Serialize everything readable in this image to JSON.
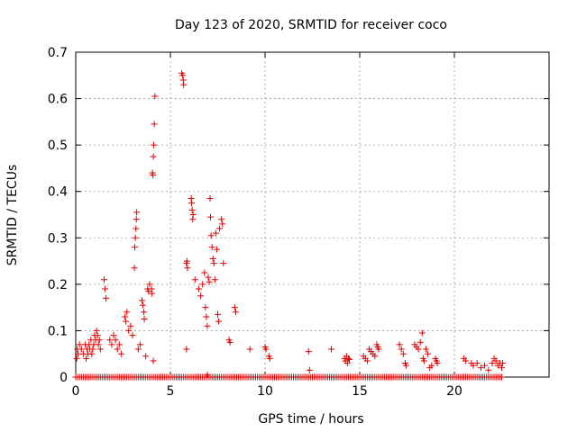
{
  "chart_data": {
    "type": "scatter",
    "title": "Day 123 of 2020, SRMTID for receiver coco",
    "xlabel": "GPS time / hours",
    "ylabel": "SRMTID / TECUs",
    "xlim": [
      0,
      25
    ],
    "ylim": [
      0,
      0.7
    ],
    "xticks": [
      0,
      5,
      10,
      15,
      20
    ],
    "yticks": [
      0,
      0.1,
      0.2,
      0.3,
      0.4,
      0.5,
      0.6,
      0.7
    ],
    "grid": true,
    "marker": "+",
    "color": "#dd0000",
    "zero_band": [
      0,
      22.6
    ],
    "series": [
      {
        "name": "SRMTID",
        "points": [
          [
            0.05,
            0.04
          ],
          [
            0.08,
            0.06
          ],
          [
            0.12,
            0.05
          ],
          [
            0.2,
            0.07
          ],
          [
            0.3,
            0.06
          ],
          [
            0.4,
            0.05
          ],
          [
            0.5,
            0.07
          ],
          [
            0.55,
            0.04
          ],
          [
            0.6,
            0.06
          ],
          [
            0.65,
            0.05
          ],
          [
            0.7,
            0.07
          ],
          [
            0.75,
            0.06
          ],
          [
            0.8,
            0.08
          ],
          [
            0.85,
            0.05
          ],
          [
            0.9,
            0.06
          ],
          [
            0.95,
            0.07
          ],
          [
            1.0,
            0.09
          ],
          [
            1.05,
            0.08
          ],
          [
            1.1,
            0.1
          ],
          [
            1.15,
            0.09
          ],
          [
            1.2,
            0.07
          ],
          [
            1.25,
            0.08
          ],
          [
            1.3,
            0.06
          ],
          [
            1.5,
            0.21
          ],
          [
            1.55,
            0.19
          ],
          [
            1.6,
            0.17
          ],
          [
            1.8,
            0.08
          ],
          [
            1.9,
            0.07
          ],
          [
            2.0,
            0.09
          ],
          [
            2.1,
            0.08
          ],
          [
            2.2,
            0.06
          ],
          [
            2.3,
            0.07
          ],
          [
            2.4,
            0.05
          ],
          [
            2.6,
            0.13
          ],
          [
            2.65,
            0.12
          ],
          [
            2.7,
            0.14
          ],
          [
            2.8,
            0.1
          ],
          [
            2.9,
            0.11
          ],
          [
            3.0,
            0.09
          ],
          [
            3.1,
            0.235
          ],
          [
            3.12,
            0.28
          ],
          [
            3.15,
            0.3
          ],
          [
            3.18,
            0.32
          ],
          [
            3.2,
            0.34
          ],
          [
            3.22,
            0.355
          ],
          [
            3.3,
            0.06
          ],
          [
            3.4,
            0.07
          ],
          [
            3.5,
            0.165
          ],
          [
            3.55,
            0.155
          ],
          [
            3.6,
            0.14
          ],
          [
            3.62,
            0.125
          ],
          [
            3.7,
            0.045
          ],
          [
            3.8,
            0.19
          ],
          [
            3.85,
            0.185
          ],
          [
            3.9,
            0.2
          ],
          [
            4.05,
            0.44
          ],
          [
            4.08,
            0.435
          ],
          [
            4.1,
            0.475
          ],
          [
            4.12,
            0.5
          ],
          [
            4.15,
            0.545
          ],
          [
            4.18,
            0.605
          ],
          [
            4.1,
            0.035
          ],
          [
            5.6,
            0.655
          ],
          [
            5.65,
            0.65
          ],
          [
            5.68,
            0.64
          ],
          [
            5.7,
            0.63
          ],
          [
            5.85,
            0.245
          ],
          [
            5.88,
            0.25
          ],
          [
            5.9,
            0.235
          ],
          [
            5.85,
            0.06
          ],
          [
            6.1,
            0.385
          ],
          [
            6.12,
            0.375
          ],
          [
            6.15,
            0.36
          ],
          [
            6.18,
            0.34
          ],
          [
            6.2,
            0.35
          ],
          [
            6.3,
            0.21
          ],
          [
            6.5,
            0.19
          ],
          [
            6.6,
            0.175
          ],
          [
            6.7,
            0.2
          ],
          [
            6.8,
            0.225
          ],
          [
            6.85,
            0.15
          ],
          [
            6.9,
            0.13
          ],
          [
            6.95,
            0.11
          ],
          [
            7.0,
            0.215
          ],
          [
            7.05,
            0.205
          ],
          [
            7.1,
            0.385
          ],
          [
            7.12,
            0.345
          ],
          [
            7.15,
            0.305
          ],
          [
            7.2,
            0.28
          ],
          [
            7.25,
            0.255
          ],
          [
            7.3,
            0.245
          ],
          [
            7.35,
            0.21
          ],
          [
            7.4,
            0.31
          ],
          [
            7.45,
            0.275
          ],
          [
            7.5,
            0.135
          ],
          [
            7.55,
            0.12
          ],
          [
            7.6,
            0.32
          ],
          [
            7.7,
            0.34
          ],
          [
            7.75,
            0.33
          ],
          [
            7.8,
            0.245
          ],
          [
            8.1,
            0.08
          ],
          [
            8.15,
            0.075
          ],
          [
            8.4,
            0.15
          ],
          [
            8.45,
            0.14
          ],
          [
            9.2,
            0.06
          ],
          [
            10.0,
            0.065
          ],
          [
            10.05,
            0.06
          ],
          [
            10.2,
            0.045
          ],
          [
            10.25,
            0.04
          ],
          [
            12.3,
            0.055
          ],
          [
            12.35,
            0.015
          ],
          [
            13.5,
            0.06
          ],
          [
            14.2,
            0.04
          ],
          [
            14.25,
            0.035
          ],
          [
            14.3,
            0.045
          ],
          [
            14.35,
            0.03
          ],
          [
            14.4,
            0.04
          ],
          [
            14.45,
            0.038
          ],
          [
            15.2,
            0.045
          ],
          [
            15.3,
            0.04
          ],
          [
            15.4,
            0.035
          ],
          [
            15.5,
            0.06
          ],
          [
            15.6,
            0.055
          ],
          [
            15.7,
            0.05
          ],
          [
            15.8,
            0.045
          ],
          [
            15.9,
            0.07
          ],
          [
            15.95,
            0.065
          ],
          [
            16.0,
            0.06
          ],
          [
            17.1,
            0.07
          ],
          [
            17.2,
            0.06
          ],
          [
            17.3,
            0.05
          ],
          [
            17.4,
            0.03
          ],
          [
            17.45,
            0.025
          ],
          [
            17.9,
            0.07
          ],
          [
            18.0,
            0.065
          ],
          [
            18.1,
            0.06
          ],
          [
            18.2,
            0.075
          ],
          [
            18.3,
            0.095
          ],
          [
            18.35,
            0.04
          ],
          [
            18.4,
            0.035
          ],
          [
            18.5,
            0.06
          ],
          [
            18.6,
            0.05
          ],
          [
            18.7,
            0.02
          ],
          [
            18.8,
            0.025
          ],
          [
            19.0,
            0.04
          ],
          [
            19.05,
            0.035
          ],
          [
            19.1,
            0.03
          ],
          [
            20.5,
            0.04
          ],
          [
            20.6,
            0.035
          ],
          [
            20.9,
            0.03
          ],
          [
            21.0,
            0.025
          ],
          [
            21.2,
            0.03
          ],
          [
            21.4,
            0.02
          ],
          [
            21.6,
            0.025
          ],
          [
            21.8,
            0.015
          ],
          [
            22.0,
            0.03
          ],
          [
            22.1,
            0.04
          ],
          [
            22.2,
            0.035
          ],
          [
            22.3,
            0.025
          ],
          [
            22.4,
            0.03
          ],
          [
            22.5,
            0.02
          ],
          [
            22.55,
            0.03
          ],
          [
            4.02,
            0.18
          ],
          [
            4.0,
            0.19
          ],
          [
            6.95,
            0.005
          ]
        ]
      }
    ]
  }
}
